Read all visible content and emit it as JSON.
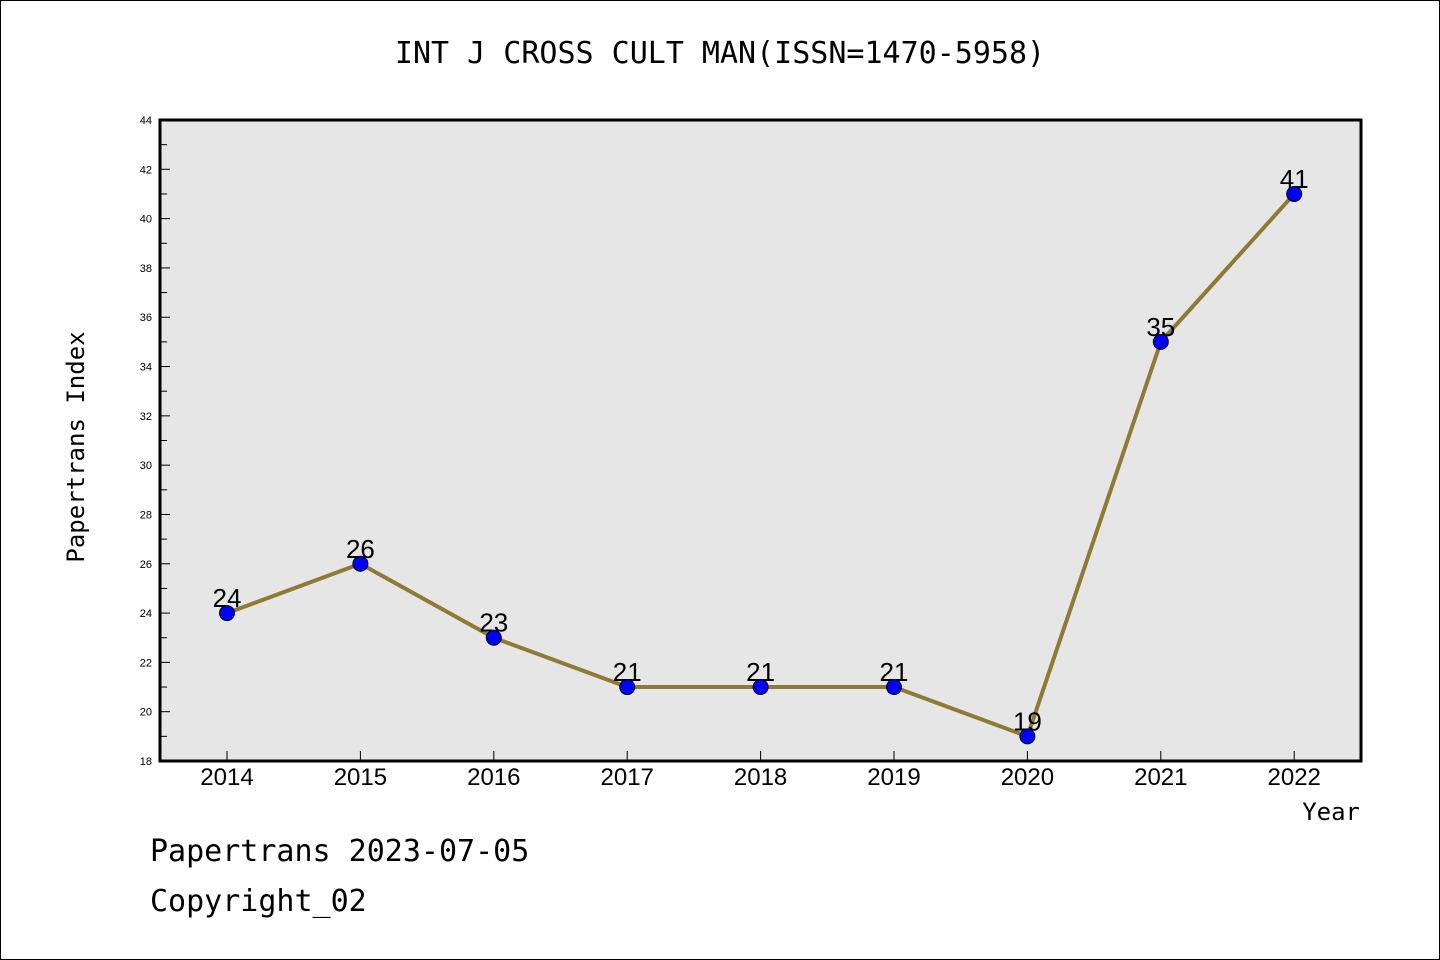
{
  "chart_data": {
    "type": "line",
    "title": "INT J CROSS CULT MAN(ISSN=1470-5958)",
    "xlabel": "Year",
    "ylabel": "Papertrans Index",
    "categories": [
      "2014",
      "2015",
      "2016",
      "2017",
      "2018",
      "2019",
      "2020",
      "2021",
      "2022"
    ],
    "values": [
      24,
      26,
      23,
      21,
      21,
      21,
      19,
      35,
      41
    ],
    "data_labels": [
      "24",
      "26",
      "23",
      "21",
      "21",
      "21",
      "19",
      "35",
      "41"
    ],
    "ylim": [
      18,
      44
    ],
    "yticks": [
      "18",
      "20",
      "22",
      "24",
      "26",
      "28",
      "30",
      "32",
      "34",
      "36",
      "38",
      "40",
      "42",
      "44"
    ],
    "grid": false,
    "legend": "none",
    "colors": {
      "line": "#8f7a35",
      "marker": "#0000ff",
      "plot_bg": "#e6e6e6"
    }
  },
  "footer": {
    "date_text": "Papertrans 2023-07-05",
    "copyright_text": "Copyright_02"
  }
}
